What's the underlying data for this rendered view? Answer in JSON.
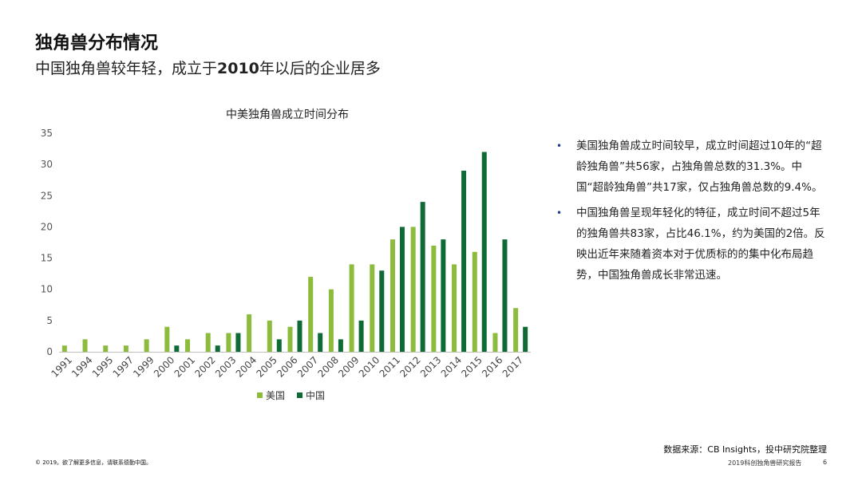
{
  "header": {
    "title": "独角兽分布情况",
    "subtitle_before": "中国独角兽较年轻，成立于",
    "subtitle_bold": "2010",
    "subtitle_after": "年以后的企业居多"
  },
  "chart_data": {
    "type": "bar",
    "title": "中美独角兽成立时间分布",
    "categories": [
      "1991",
      "1994",
      "1995",
      "1997",
      "1999",
      "2000",
      "2001",
      "2002",
      "2003",
      "2004",
      "2005",
      "2006",
      "2007",
      "2008",
      "2009",
      "2010",
      "2011",
      "2012",
      "2013",
      "2014",
      "2015",
      "2016",
      "2017"
    ],
    "series": [
      {
        "name": "美国",
        "color": "#8dbb3c",
        "values": [
          1,
          2,
          1,
          1,
          2,
          4,
          2,
          3,
          3,
          6,
          5,
          4,
          12,
          10,
          14,
          14,
          18,
          20,
          17,
          14,
          16,
          3,
          7
        ]
      },
      {
        "name": "中国",
        "color": "#0f6b35",
        "values": [
          0,
          0,
          0,
          0,
          0,
          1,
          0,
          1,
          3,
          0,
          2,
          5,
          3,
          2,
          5,
          13,
          20,
          24,
          18,
          29,
          32,
          18,
          4
        ]
      }
    ],
    "ylim": [
      0,
      35
    ],
    "yticks": [
      "0",
      "5",
      "10",
      "15",
      "20",
      "25",
      "30",
      "35"
    ],
    "legend_position": "bottom",
    "grid": false
  },
  "bullets": [
    "美国独角兽成立时间较早，成立时间超过10年的“超龄独角兽”共56家，占独角兽总数的31.3%。中国“超龄独角兽”共17家，仅占独角兽总数的9.4%。",
    "中国独角兽呈现年轻化的特征，成立时间不超过5年的独角兽共83家，占比46.1%，约为美国的2倍。反映出近年来随着资本对于优质标的的集中化布局趋势，中国独角兽成长非常迅速。"
  ],
  "bullet_symbol": "•",
  "source": "数据来源：CB Insights，投中研究院整理",
  "footer_left": "© 2019。欲了解更多信息，请联系德勤中国。",
  "footer_right": "2019科创独角兽研究报告",
  "page_number": "6"
}
